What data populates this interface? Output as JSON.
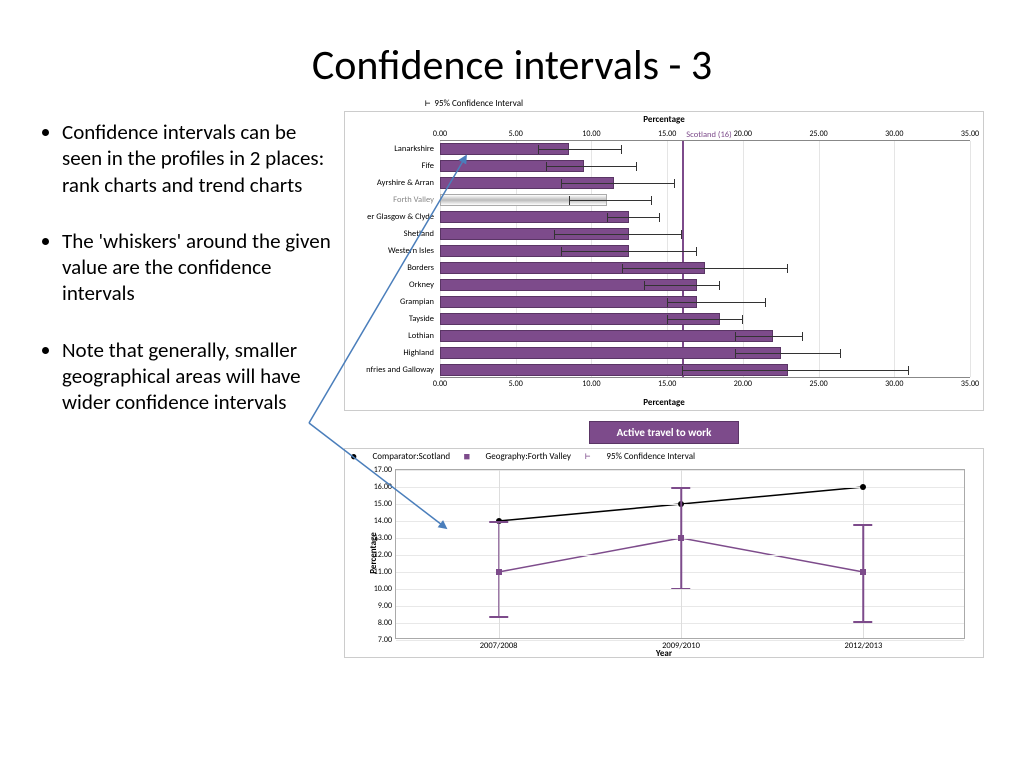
{
  "title": "Confidence intervals - 3",
  "bullets": [
    "Confidence intervals can be seen in the profiles in 2 places: rank charts and trend charts",
    "The 'whiskers' around the given value are the confidence intervals",
    "Note that generally, smaller geographical areas will have wider confidence intervals"
  ],
  "bar_chart": {
    "legend": "95% Confidence Interval",
    "axis_label": "Percentage",
    "xmin": 0,
    "xmax": 35,
    "xstep": 5,
    "tick_labels": [
      "0.00",
      "5.00",
      "10.00",
      "15.00",
      "20.00",
      "25.00",
      "30.00",
      "35.00"
    ],
    "reference": {
      "label": "Scotland (16)",
      "value": 16
    },
    "bar_color": "#7d4b8b",
    "highlight_row": "Forth Valley",
    "rows": [
      {
        "label": "Lanarkshire",
        "value": 8.5,
        "ci_low": 6.5,
        "ci_high": 12.0
      },
      {
        "label": "Fife",
        "value": 9.5,
        "ci_low": 7.0,
        "ci_high": 13.0
      },
      {
        "label": "Ayrshire & Arran",
        "value": 11.5,
        "ci_low": 8.0,
        "ci_high": 15.5
      },
      {
        "label": "Forth Valley",
        "value": 11.0,
        "ci_low": 8.5,
        "ci_high": 14.0
      },
      {
        "label": "er Glasgow & Clyde",
        "value": 12.5,
        "ci_low": 11.0,
        "ci_high": 14.5
      },
      {
        "label": "Shetland",
        "value": 12.5,
        "ci_low": 7.5,
        "ci_high": 16.0
      },
      {
        "label": "Western Isles",
        "value": 12.5,
        "ci_low": 8.0,
        "ci_high": 17.0
      },
      {
        "label": "Borders",
        "value": 17.5,
        "ci_low": 12.0,
        "ci_high": 23.0
      },
      {
        "label": "Orkney",
        "value": 17.0,
        "ci_low": 13.5,
        "ci_high": 18.5
      },
      {
        "label": "Grampian",
        "value": 17.0,
        "ci_low": 15.0,
        "ci_high": 21.5
      },
      {
        "label": "Tayside",
        "value": 18.5,
        "ci_low": 15.0,
        "ci_high": 20.0
      },
      {
        "label": "Lothian",
        "value": 22.0,
        "ci_low": 19.5,
        "ci_high": 24.0
      },
      {
        "label": "Highland",
        "value": 22.5,
        "ci_low": 19.5,
        "ci_high": 26.5
      },
      {
        "label": "nfries and Galloway",
        "value": 23.0,
        "ci_low": 16.0,
        "ci_high": 31.0
      }
    ],
    "button_label": "Active travel to work"
  },
  "line_chart": {
    "legend_items": [
      {
        "marker": "●",
        "color": "#000000",
        "text": "Comparator:Scotland"
      },
      {
        "marker": "■",
        "color": "#7d4b8b",
        "text": "Geography:Forth Valley"
      },
      {
        "marker": "⊢",
        "color": "#7d4b8b",
        "text": "95% Confidence Interval"
      }
    ],
    "ylabel": "Percentage",
    "xlabel": "Year",
    "ymin": 7,
    "ymax": 17,
    "ystep": 1,
    "ytick_labels": [
      "7.00",
      "8.00",
      "9.00",
      "10.00",
      "11.00",
      "12.00",
      "13.00",
      "14.00",
      "15.00",
      "16.00",
      "17.00"
    ],
    "categories": [
      "2007/2008",
      "2009/2010",
      "2012/2013"
    ],
    "series": [
      {
        "name": "Scotland",
        "color": "#000000",
        "marker": "circle",
        "points": [
          {
            "x": 0,
            "y": 14.0
          },
          {
            "x": 1,
            "y": 15.0
          },
          {
            "x": 2,
            "y": 16.0
          }
        ]
      },
      {
        "name": "Forth Valley",
        "color": "#7d4b8b",
        "marker": "square",
        "points": [
          {
            "x": 0,
            "y": 11.0,
            "lo": 8.3,
            "hi": 14.0
          },
          {
            "x": 1,
            "y": 13.0,
            "lo": 10.0,
            "hi": 16.0
          },
          {
            "x": 2,
            "y": 11.0,
            "lo": 8.0,
            "hi": 13.8
          }
        ]
      }
    ]
  },
  "arrow_color": "#4a7ebb"
}
